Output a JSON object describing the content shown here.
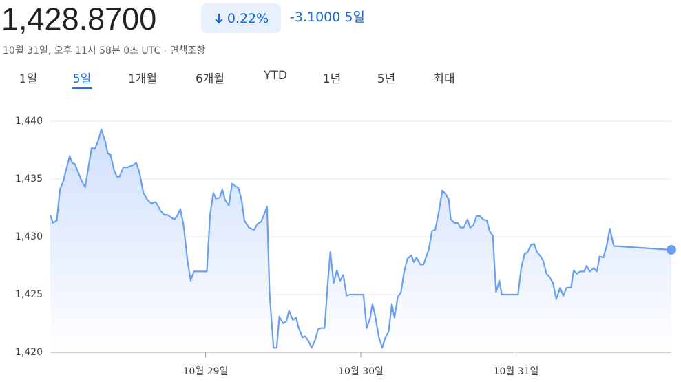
{
  "header": {
    "price": "1,428.8700",
    "change_percent": "0.22%",
    "change_abs": "-3.1000 5일",
    "timestamp": "10월 31일, 오후 11시 58분 0초 UTC · 면책조항"
  },
  "tabs": [
    {
      "label": "1일"
    },
    {
      "label": "5일",
      "active": true
    },
    {
      "label": "1개월"
    },
    {
      "label": "6개월"
    },
    {
      "label": "YTD"
    },
    {
      "label": "1년"
    },
    {
      "label": "5년"
    },
    {
      "label": "최대"
    }
  ],
  "chart_data": {
    "type": "line",
    "color": "#6a9ff0",
    "grid": true,
    "xlim": [
      0,
      96
    ],
    "xticks": [
      {
        "value": 24,
        "label": "10월 29일"
      },
      {
        "value": 48,
        "label": "10월 30일"
      },
      {
        "value": 72,
        "label": "10월 31일"
      }
    ],
    "ylim": [
      1420,
      1440
    ],
    "yticks": [
      {
        "value": 1420,
        "label": "1,420"
      },
      {
        "value": 1425,
        "label": "1,425"
      },
      {
        "value": 1430,
        "label": "1,430"
      },
      {
        "value": 1435,
        "label": "1,435"
      },
      {
        "value": 1440,
        "label": "1,440"
      }
    ],
    "x": [
      0,
      0.4,
      1.0,
      1.5,
      2.0,
      3.0,
      3.4,
      3.8,
      4.8,
      5.4,
      6.0,
      6.4,
      6.9,
      7.4,
      7.9,
      8.5,
      8.9,
      9.3,
      9.9,
      10.3,
      10.7,
      11.3,
      11.9,
      12.8,
      13.3,
      13.8,
      14.4,
      15.0,
      15.6,
      16.3,
      17.0,
      17.6,
      18.1,
      18.6,
      19.2,
      19.6,
      20.1,
      20.6,
      21.2,
      21.7,
      22.2,
      24.2,
      24.7,
      25.2,
      25.6,
      26.2,
      26.6,
      27.0,
      27.6,
      28.1,
      29.1,
      29.6,
      30.0,
      30.7,
      31.5,
      32.0,
      32.6,
      33.1,
      33.5,
      33.9,
      34.5,
      35.0,
      35.4,
      36.0,
      36.5,
      36.9,
      37.5,
      38.0,
      38.4,
      39.0,
      39.4,
      39.9,
      40.4,
      40.9,
      41.4,
      41.8,
      42.4,
      42.9,
      43.3,
      43.8,
      44.3,
      44.8,
      45.3,
      45.8,
      46.3,
      48.4,
      48.9,
      49.4,
      49.8,
      50.2,
      50.8,
      51.3,
      51.8,
      52.3,
      52.8,
      53.2,
      53.7,
      54.2,
      54.7,
      55.2,
      55.8,
      56.2,
      56.6,
      57.2,
      57.7,
      58.5,
      59.0,
      59.5,
      60.0,
      60.6,
      61.1,
      61.6,
      61.9,
      62.5,
      63.0,
      63.4,
      63.9,
      64.5,
      64.9,
      65.4,
      65.9,
      66.4,
      66.9,
      67.5,
      67.9,
      68.4,
      68.9,
      69.4,
      69.8,
      72.3,
      72.8,
      73.3,
      73.8,
      74.3,
      74.8,
      75.2,
      75.8,
      76.2,
      76.7,
      77.2,
      77.7,
      78.2,
      78.8,
      79.3,
      79.8,
      80.5,
      80.9,
      81.4,
      81.9,
      82.5,
      82.9,
      83.4,
      84.0,
      84.5,
      84.9,
      85.5,
      86.0,
      86.5,
      87.1,
      96.0
    ],
    "values": [
      1431.9,
      1431.2,
      1431.4,
      1434.1,
      1434.8,
      1437.0,
      1436.4,
      1436.3,
      1434.9,
      1434.3,
      1436.4,
      1437.7,
      1437.6,
      1438.3,
      1439.3,
      1438.2,
      1437.2,
      1437.1,
      1435.7,
      1435.2,
      1435.2,
      1436.0,
      1436.0,
      1436.2,
      1436.4,
      1435.5,
      1433.8,
      1433.2,
      1432.9,
      1433.0,
      1432.3,
      1431.9,
      1431.9,
      1431.7,
      1431.5,
      1431.8,
      1432.4,
      1431.0,
      1428.0,
      1426.2,
      1427.0,
      1427.0,
      1431.9,
      1433.8,
      1433.3,
      1433.4,
      1434.1,
      1433.2,
      1432.7,
      1434.6,
      1434.2,
      1433.1,
      1431.4,
      1430.8,
      1430.6,
      1431.1,
      1431.3,
      1432.0,
      1432.6,
      1425.1,
      1420.4,
      1420.4,
      1423.1,
      1422.5,
      1422.7,
      1423.6,
      1422.8,
      1423.0,
      1422.1,
      1421.3,
      1421.4,
      1421.0,
      1420.4,
      1421.0,
      1422.0,
      1422.1,
      1422.1,
      1426.1,
      1428.7,
      1426.0,
      1427.1,
      1426.2,
      1426.7,
      1424.9,
      1425.0,
      1425.0,
      1422.1,
      1422.9,
      1424.2,
      1423.2,
      1421.3,
      1420.4,
      1421.3,
      1421.8,
      1424.2,
      1423.0,
      1424.8,
      1425.2,
      1427.0,
      1428.1,
      1428.4,
      1427.8,
      1428.2,
      1427.6,
      1427.6,
      1428.9,
      1430.5,
      1430.6,
      1432.0,
      1434.0,
      1433.7,
      1433.2,
      1431.5,
      1431.2,
      1431.2,
      1430.8,
      1430.8,
      1431.5,
      1430.8,
      1431.0,
      1431.8,
      1431.8,
      1431.5,
      1431.4,
      1430.5,
      1430.1,
      1425.2,
      1426.2,
      1425.0,
      1425.0,
      1427.3,
      1428.5,
      1428.7,
      1429.3,
      1429.4,
      1428.7,
      1428.3,
      1427.9,
      1426.8,
      1426.5,
      1426.0,
      1424.6,
      1425.6,
      1424.9,
      1425.6,
      1425.6,
      1427.1,
      1426.8,
      1427.0,
      1427.0,
      1427.5,
      1427.0,
      1427.3,
      1427.0,
      1428.3,
      1428.2,
      1429.2,
      1430.7,
      1429.2,
      1428.87
    ]
  }
}
